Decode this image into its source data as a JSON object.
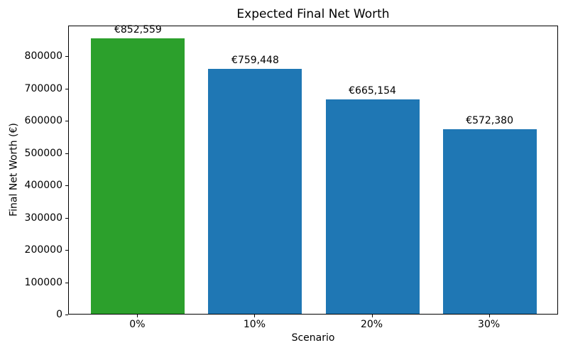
{
  "chart_data": {
    "type": "bar",
    "title": "Expected Final Net Worth",
    "xlabel": "Scenario",
    "ylabel": "Final Net Worth (€)",
    "categories": [
      "0%",
      "10%",
      "20%",
      "30%"
    ],
    "values": [
      852559,
      759448,
      665154,
      572380
    ],
    "bar_labels": [
      "€852,559",
      "€759,448",
      "€665,154",
      "€572,380"
    ],
    "bar_colors": [
      "#2ca02c",
      "#1f77b4",
      "#1f77b4",
      "#1f77b4"
    ],
    "yticks": [
      0,
      100000,
      200000,
      300000,
      400000,
      500000,
      600000,
      700000,
      800000
    ],
    "ylim": [
      0,
      895187
    ],
    "grid": false,
    "legend": "none",
    "layout": {
      "bar_width_fraction": 0.8,
      "x_margin_units": 0.59
    }
  }
}
